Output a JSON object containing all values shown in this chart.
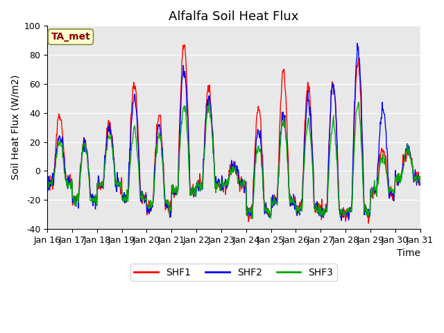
{
  "title": "Alfalfa Soil Heat Flux",
  "ylabel": "Soil Heat Flux (W/m2)",
  "xlabel": "Time",
  "ylim": [
    -40,
    100
  ],
  "yticks": [
    -40,
    -20,
    0,
    20,
    40,
    60,
    80,
    100
  ],
  "xtick_labels": [
    "Jan 16",
    "Jan 17",
    "Jan 18",
    "Jan 19",
    "Jan 20",
    "Jan 21",
    "Jan 22",
    "Jan 23",
    "Jan 24",
    "Jan 25",
    "Jan 26",
    "Jan 27",
    "Jan 28",
    "Jan 29",
    "Jan 30",
    "Jan 31"
  ],
  "annotation_text": "TA_met",
  "annotation_color": "#8B0000",
  "annotation_bg": "#FFFFCC",
  "colors": {
    "SHF1": "#FF0000",
    "SHF2": "#0000FF",
    "SHF3": "#00AA00"
  },
  "bg_color": "#E8E8E8",
  "title_fontsize": 13,
  "axis_fontsize": 10,
  "tick_fontsize": 9,
  "n_days": 16,
  "n_per_day": 48,
  "day_peaks": [
    38,
    20,
    32,
    60,
    38,
    87,
    57,
    5,
    42,
    67,
    60,
    60,
    75,
    15,
    15,
    0
  ],
  "day_valleys": [
    -8,
    -21,
    -10,
    -20,
    -26,
    -15,
    -10,
    -10,
    -30,
    -22,
    -27,
    -30,
    -30,
    -15,
    -5,
    -5
  ],
  "shf2_peaks": [
    25,
    20,
    30,
    50,
    30,
    70,
    50,
    3,
    28,
    40,
    50,
    60,
    86,
    43,
    17,
    0
  ],
  "shf3_peaks": [
    20,
    18,
    24,
    28,
    24,
    44,
    44,
    3,
    17,
    35,
    33,
    32,
    46,
    10,
    15,
    0
  ]
}
